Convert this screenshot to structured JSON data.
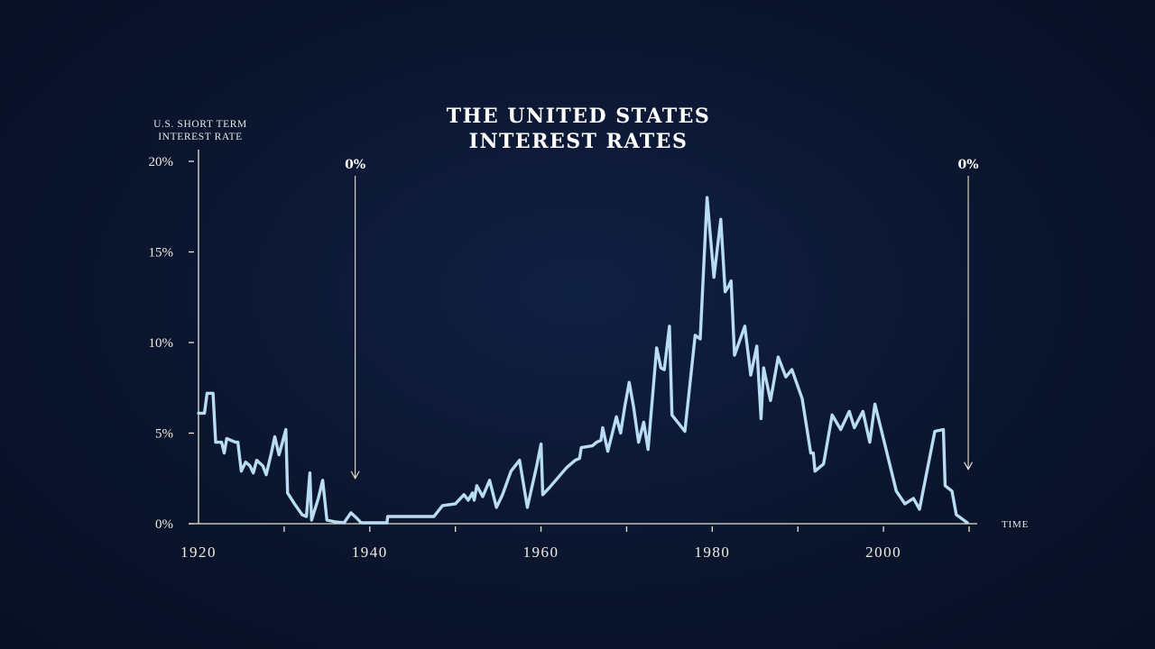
{
  "chart_data": {
    "type": "line",
    "title_lines": [
      "THE UNITED STATES",
      "INTEREST RATES"
    ],
    "ylabel_lines": [
      "U.S. SHORT TERM",
      "INTEREST RATE"
    ],
    "xlabel": "TIME",
    "ylim": [
      0,
      20
    ],
    "xlim": [
      1920,
      2010
    ],
    "y_ticks": [
      {
        "value": 0,
        "label": "0%"
      },
      {
        "value": 5,
        "label": "5%"
      },
      {
        "value": 10,
        "label": "10%"
      },
      {
        "value": 15,
        "label": "15%"
      },
      {
        "value": 20,
        "label": "20%"
      }
    ],
    "x_ticks": [
      {
        "value": 1920,
        "label": "1920"
      },
      {
        "value": 1930,
        "label": ""
      },
      {
        "value": 1940,
        "label": "1940"
      },
      {
        "value": 1950,
        "label": ""
      },
      {
        "value": 1960,
        "label": "1960"
      },
      {
        "value": 1970,
        "label": ""
      },
      {
        "value": 1980,
        "label": "1980"
      },
      {
        "value": 1990,
        "label": ""
      },
      {
        "value": 2000,
        "label": "2000"
      },
      {
        "value": 2010,
        "label": ""
      }
    ],
    "annotations": [
      {
        "x": 1938.3,
        "label": "0%",
        "arrow_to": 2.5
      },
      {
        "x": 2009.9,
        "label": "0%",
        "arrow_to": 3.0
      }
    ],
    "series": [
      {
        "name": "U.S. short term interest rate",
        "color": "#b8dcf2",
        "points": [
          [
            1920.0,
            6.1
          ],
          [
            1920.7,
            6.1
          ],
          [
            1921.0,
            7.2
          ],
          [
            1921.7,
            7.2
          ],
          [
            1922.0,
            4.5
          ],
          [
            1922.7,
            4.5
          ],
          [
            1923.0,
            3.9
          ],
          [
            1923.3,
            4.7
          ],
          [
            1924.3,
            4.5
          ],
          [
            1924.6,
            4.5
          ],
          [
            1925.0,
            2.9
          ],
          [
            1925.5,
            3.4
          ],
          [
            1926.0,
            3.2
          ],
          [
            1926.4,
            2.8
          ],
          [
            1926.8,
            3.5
          ],
          [
            1927.5,
            3.2
          ],
          [
            1927.9,
            2.7
          ],
          [
            1928.5,
            3.9
          ],
          [
            1928.9,
            4.8
          ],
          [
            1929.4,
            3.8
          ],
          [
            1930.2,
            5.2
          ],
          [
            1930.4,
            1.7
          ],
          [
            1931.2,
            1.1
          ],
          [
            1932.1,
            0.5
          ],
          [
            1932.6,
            0.4
          ],
          [
            1933.0,
            2.8
          ],
          [
            1933.2,
            0.2
          ],
          [
            1934.0,
            1.4
          ],
          [
            1934.5,
            2.4
          ],
          [
            1935.0,
            0.2
          ],
          [
            1936.0,
            0.1
          ],
          [
            1937.0,
            0.05
          ],
          [
            1937.8,
            0.6
          ],
          [
            1938.5,
            0.3
          ],
          [
            1939.0,
            0.05
          ],
          [
            1942.0,
            0.05
          ],
          [
            1942.1,
            0.4
          ],
          [
            1947.5,
            0.4
          ],
          [
            1948.5,
            1.0
          ],
          [
            1950.0,
            1.1
          ],
          [
            1951.0,
            1.6
          ],
          [
            1951.5,
            1.3
          ],
          [
            1952.0,
            1.7
          ],
          [
            1952.2,
            1.3
          ],
          [
            1952.5,
            2.1
          ],
          [
            1953.2,
            1.5
          ],
          [
            1954.0,
            2.4
          ],
          [
            1954.8,
            0.9
          ],
          [
            1955.5,
            1.6
          ],
          [
            1956.5,
            2.9
          ],
          [
            1957.5,
            3.5
          ],
          [
            1958.4,
            0.9
          ],
          [
            1959.5,
            3.2
          ],
          [
            1960.0,
            4.4
          ],
          [
            1960.2,
            1.6
          ],
          [
            1961.0,
            2.0
          ],
          [
            1963.0,
            3.1
          ],
          [
            1964.0,
            3.5
          ],
          [
            1964.5,
            3.6
          ],
          [
            1964.7,
            4.2
          ],
          [
            1966.0,
            4.3
          ],
          [
            1966.5,
            4.5
          ],
          [
            1967.0,
            4.6
          ],
          [
            1967.2,
            5.3
          ],
          [
            1967.8,
            4.0
          ],
          [
            1968.8,
            5.9
          ],
          [
            1969.3,
            5.0
          ],
          [
            1969.8,
            6.5
          ],
          [
            1970.3,
            7.8
          ],
          [
            1970.8,
            6.5
          ],
          [
            1971.4,
            4.5
          ],
          [
            1972.0,
            5.6
          ],
          [
            1972.5,
            4.1
          ],
          [
            1973.5,
            9.7
          ],
          [
            1974.0,
            8.6
          ],
          [
            1974.4,
            8.5
          ],
          [
            1975.0,
            10.9
          ],
          [
            1975.3,
            6.0
          ],
          [
            1976.8,
            5.1
          ],
          [
            1978.0,
            10.4
          ],
          [
            1978.6,
            10.2
          ],
          [
            1979.4,
            18.0
          ],
          [
            1980.2,
            13.6
          ],
          [
            1981.0,
            16.8
          ],
          [
            1981.5,
            12.8
          ],
          [
            1981.9,
            13.1
          ],
          [
            1982.2,
            13.4
          ],
          [
            1982.6,
            9.3
          ],
          [
            1983.8,
            10.9
          ],
          [
            1984.5,
            8.2
          ],
          [
            1985.2,
            9.8
          ],
          [
            1985.7,
            5.8
          ],
          [
            1986.0,
            8.6
          ],
          [
            1986.8,
            6.8
          ],
          [
            1987.7,
            9.2
          ],
          [
            1988.6,
            8.1
          ],
          [
            1989.3,
            8.5
          ],
          [
            1990.5,
            6.9
          ],
          [
            1991.5,
            3.9
          ],
          [
            1991.8,
            3.9
          ],
          [
            1992.0,
            2.9
          ],
          [
            1993.0,
            3.3
          ],
          [
            1994.0,
            6.0
          ],
          [
            1995.0,
            5.2
          ],
          [
            1996.0,
            6.2
          ],
          [
            1996.6,
            5.3
          ],
          [
            1997.6,
            6.2
          ],
          [
            1998.4,
            4.5
          ],
          [
            1999.0,
            6.6
          ],
          [
            2000.2,
            4.3
          ],
          [
            2001.5,
            1.8
          ],
          [
            2002.5,
            1.1
          ],
          [
            2003.5,
            1.4
          ],
          [
            2004.2,
            0.8
          ],
          [
            2006.0,
            5.1
          ],
          [
            2007.0,
            5.2
          ],
          [
            2007.2,
            2.1
          ],
          [
            2008.0,
            1.8
          ],
          [
            2008.5,
            0.5
          ],
          [
            2009.8,
            0.05
          ]
        ]
      }
    ]
  }
}
